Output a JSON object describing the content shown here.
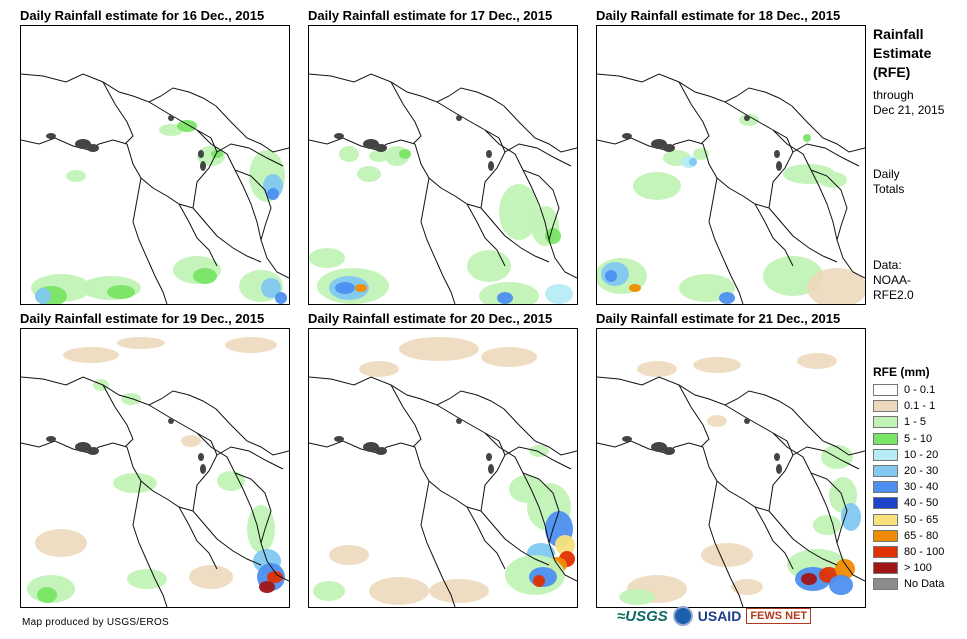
{
  "panels": [
    {
      "title": "Daily Rainfall estimate for 16 Dec., 2015"
    },
    {
      "title": "Daily Rainfall estimate for 17 Dec., 2015"
    },
    {
      "title": "Daily Rainfall estimate for 18 Dec., 2015"
    },
    {
      "title": "Daily Rainfall estimate for 19 Dec., 2015"
    },
    {
      "title": "Daily Rainfall estimate for 20 Dec., 2015"
    },
    {
      "title": "Daily Rainfall estimate for 21 Dec., 2015"
    }
  ],
  "sidebar": {
    "title_line1": "Rainfall",
    "title_line2": "Estimate",
    "title_line3": "(RFE)",
    "through_label": "through",
    "through_date": "Dec 21, 2015",
    "daily_line1": "Daily",
    "daily_line2": "Totals",
    "data_line1": "Data:",
    "data_line2": "NOAA-",
    "data_line3": "RFE2.0"
  },
  "legend": {
    "title": "RFE (mm)",
    "items": [
      {
        "label": "0 - 0.1",
        "color": "#ffffff"
      },
      {
        "label": "0.1 - 1",
        "color": "#ecd9bb"
      },
      {
        "label": "1 - 5",
        "color": "#c2f3b6"
      },
      {
        "label": "5 - 10",
        "color": "#79e565"
      },
      {
        "label": "10 - 20",
        "color": "#b7ecf5"
      },
      {
        "label": "20 - 30",
        "color": "#82c8f1"
      },
      {
        "label": "30 - 40",
        "color": "#4d8ff0"
      },
      {
        "label": "40 - 50",
        "color": "#1d43c8"
      },
      {
        "label": "50 - 65",
        "color": "#f7e27d"
      },
      {
        "label": "65 - 80",
        "color": "#f08b00"
      },
      {
        "label": "80 - 100",
        "color": "#e23000"
      },
      {
        "label": "> 100",
        "color": "#a01515"
      },
      {
        "label": "No Data",
        "color": "#8c8c8c"
      }
    ]
  },
  "footer": {
    "credit": "Map produced by USGS/EROS",
    "logo_usgs": "≈USGS",
    "logo_usaid": "USAID",
    "logo_fews": "FEWS NET"
  }
}
